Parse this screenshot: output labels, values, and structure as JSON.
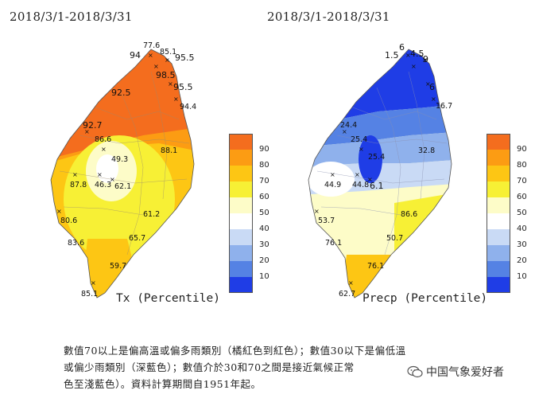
{
  "left_panel": {
    "date_range": "2018/3/1-2018/3/31",
    "title": "Tx (Percentile)",
    "stations": [
      {
        "label": "77.6"
      },
      {
        "label": "94"
      },
      {
        "label": "85.1"
      },
      {
        "label": "95.5"
      },
      {
        "label": "98.5"
      },
      {
        "label": "92.5"
      },
      {
        "label": "95.5"
      },
      {
        "label": "94.4"
      },
      {
        "label": "92.7"
      },
      {
        "label": "86.6"
      },
      {
        "label": "49.3"
      },
      {
        "label": "88.1"
      },
      {
        "label": "87.8"
      },
      {
        "label": "46.3"
      },
      {
        "label": "62.1"
      },
      {
        "label": "61.2"
      },
      {
        "label": "80.6"
      },
      {
        "label": "65.7"
      },
      {
        "label": "83.6"
      },
      {
        "label": "59.7"
      },
      {
        "label": "85.1"
      }
    ]
  },
  "right_panel": {
    "date_range": "2018/3/1-2018/3/31",
    "title": "Precp (Percentile)",
    "stations": [
      {
        "label": "6"
      },
      {
        "label": "1.5"
      },
      {
        "label": "4.5"
      },
      {
        "label": "9"
      },
      {
        "label": "6"
      },
      {
        "label": "16.7"
      },
      {
        "label": "24.4"
      },
      {
        "label": "25.4"
      },
      {
        "label": "25.4"
      },
      {
        "label": "32.8"
      },
      {
        "label": "44.9"
      },
      {
        "label": "44.8"
      },
      {
        "label": "6.1"
      },
      {
        "label": "53.7"
      },
      {
        "label": "86.6"
      },
      {
        "label": "76.1"
      },
      {
        "label": "50.7"
      },
      {
        "label": "76.1"
      },
      {
        "label": "62.7"
      }
    ]
  },
  "legend": {
    "items": [
      {
        "label": "90",
        "color": "#f46d1e"
      },
      {
        "label": "80",
        "color": "#fc9c13"
      },
      {
        "label": "70",
        "color": "#fdc614"
      },
      {
        "label": "60",
        "color": "#f7f035"
      },
      {
        "label": "50",
        "color": "#fdfcc8"
      },
      {
        "label": "40",
        "color": "#ffffff"
      },
      {
        "label": "30",
        "color": "#c9daf5"
      },
      {
        "label": "20",
        "color": "#8fb1ec"
      },
      {
        "label": "10",
        "color": "#5582e4"
      },
      {
        "label": "",
        "color": "#1f3de6"
      }
    ]
  },
  "caption": {
    "line1": "數值70以上是偏高溫或偏多雨類別（橘紅色到紅色）；數值30以下是偏低溫",
    "line2": "或偏少雨類別（深藍色）；數值介於30和70之間是接近氣候正常",
    "line3": "色至淺藍色）。資料計算期間自1951年起。"
  },
  "watermark": {
    "text": "中国气象爱好者"
  }
}
